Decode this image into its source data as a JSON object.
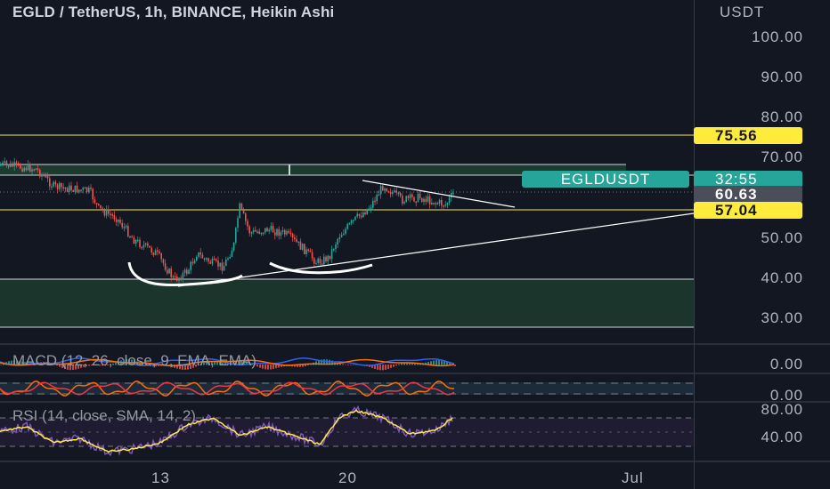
{
  "chart": {
    "title": "EGLD / TetherUS, 1h, BINANCE, Heikin Ashi",
    "symbol_tag": "EGLDUSDT",
    "price_axis": {
      "unit": "USDT",
      "ticks": [
        "100.00",
        "90.00",
        "80.00",
        "70.00",
        "50.00",
        "40.00",
        "30.00"
      ]
    },
    "price_tags": {
      "upper_level": "75.56",
      "countdown": "32:55",
      "last_price": "60.63",
      "lower_level": "57.04"
    },
    "macd": {
      "label": "MACD (12, 26, close, 9, EMA, EMA)",
      "axis_tick": "0.00"
    },
    "osc": {
      "axis_tick": "0.00"
    },
    "rsi": {
      "label": "RSI (14, close, SMA, 14, 2)",
      "axis_ticks": [
        "80.00",
        "40.00"
      ]
    },
    "time_axis": [
      "13",
      "20",
      "Jul"
    ],
    "colors": {
      "background": "#131722",
      "up": "#26a69a",
      "down": "#ef5350",
      "level_line": "#ffeb3b",
      "rsi_line": "#7e57c2",
      "rsi_ma": "#ffeb3b"
    }
  },
  "chart_data": {
    "type": "candlestick",
    "title": "EGLD / TetherUS, 1h, BINANCE, Heikin Ashi",
    "price_axis_range": [
      25,
      105
    ],
    "horizontal_levels": [
      75.56,
      57.04
    ],
    "last_price": 60.63
  }
}
